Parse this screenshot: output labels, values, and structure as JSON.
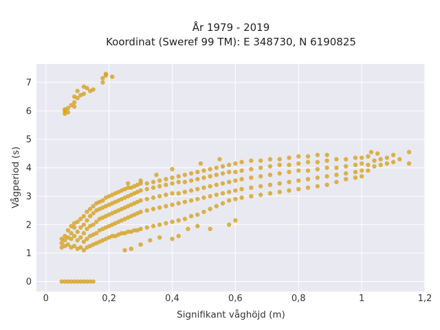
{
  "chart_data": {
    "type": "scatter",
    "title_lines": [
      "År 1979 - 2019",
      "Koordinat (Sweref 99 TM): E 348730, N 6190825"
    ],
    "xlabel": "Signifikant våghöjd (m)",
    "ylabel": "Vågperiod (s)",
    "xlim": [
      -0.03,
      1.2
    ],
    "ylim": [
      -0.35,
      7.65
    ],
    "x_ticks": [
      0,
      0.2,
      0.4,
      0.6,
      0.8,
      1.0,
      1.2
    ],
    "x_tick_labels": [
      "0",
      "0,2",
      "0,4",
      "0,6",
      "0,8",
      "1",
      "1,2"
    ],
    "y_ticks": [
      0,
      1,
      2,
      3,
      4,
      5,
      6,
      7
    ],
    "y_tick_labels": [
      "0",
      "1",
      "2",
      "3",
      "4",
      "5",
      "6",
      "7"
    ],
    "grid": true,
    "marker_color": "#D4A21F",
    "plot_background": "#E9E9F1",
    "points": [
      [
        0.05,
        0
      ],
      [
        0.06,
        0
      ],
      [
        0.07,
        0
      ],
      [
        0.08,
        0
      ],
      [
        0.09,
        0
      ],
      [
        0.1,
        0
      ],
      [
        0.11,
        0
      ],
      [
        0.12,
        0
      ],
      [
        0.13,
        0
      ],
      [
        0.14,
        0
      ],
      [
        0.15,
        0
      ],
      [
        0.05,
        1.2
      ],
      [
        0.05,
        1.35
      ],
      [
        0.05,
        1.5
      ],
      [
        0.06,
        1.25
      ],
      [
        0.06,
        1.45
      ],
      [
        0.06,
        1.6
      ],
      [
        0.07,
        1.3
      ],
      [
        0.07,
        1.55
      ],
      [
        0.07,
        1.8
      ],
      [
        0.08,
        1.2
      ],
      [
        0.08,
        1.5
      ],
      [
        0.08,
        1.7
      ],
      [
        0.08,
        1.95
      ],
      [
        0.09,
        1.25
      ],
      [
        0.09,
        1.6
      ],
      [
        0.09,
        1.9
      ],
      [
        0.09,
        2.05
      ],
      [
        0.1,
        1.15
      ],
      [
        0.1,
        1.45
      ],
      [
        0.1,
        1.75
      ],
      [
        0.1,
        2.1
      ],
      [
        0.11,
        1.2
      ],
      [
        0.11,
        1.55
      ],
      [
        0.11,
        1.9
      ],
      [
        0.11,
        2.2
      ],
      [
        0.12,
        1.1
      ],
      [
        0.12,
        1.4
      ],
      [
        0.12,
        1.7
      ],
      [
        0.12,
        2.0
      ],
      [
        0.12,
        2.3
      ],
      [
        0.13,
        1.2
      ],
      [
        0.13,
        1.5
      ],
      [
        0.13,
        1.85
      ],
      [
        0.13,
        2.15
      ],
      [
        0.13,
        2.45
      ],
      [
        0.14,
        1.25
      ],
      [
        0.14,
        1.6
      ],
      [
        0.14,
        1.95
      ],
      [
        0.14,
        2.3
      ],
      [
        0.14,
        2.55
      ],
      [
        0.15,
        1.3
      ],
      [
        0.15,
        1.65
      ],
      [
        0.15,
        2.0
      ],
      [
        0.15,
        2.4
      ],
      [
        0.15,
        2.65
      ],
      [
        0.16,
        1.35
      ],
      [
        0.16,
        1.7
      ],
      [
        0.16,
        2.1
      ],
      [
        0.16,
        2.5
      ],
      [
        0.16,
        2.75
      ],
      [
        0.17,
        1.4
      ],
      [
        0.17,
        1.8
      ],
      [
        0.17,
        2.2
      ],
      [
        0.17,
        2.55
      ],
      [
        0.17,
        2.8
      ],
      [
        0.18,
        1.45
      ],
      [
        0.18,
        1.85
      ],
      [
        0.18,
        2.25
      ],
      [
        0.18,
        2.6
      ],
      [
        0.18,
        2.85
      ],
      [
        0.19,
        1.5
      ],
      [
        0.19,
        1.9
      ],
      [
        0.19,
        2.3
      ],
      [
        0.19,
        2.65
      ],
      [
        0.19,
        2.95
      ],
      [
        0.2,
        1.55
      ],
      [
        0.2,
        1.95
      ],
      [
        0.2,
        2.35
      ],
      [
        0.2,
        2.7
      ],
      [
        0.2,
        3.0
      ],
      [
        0.21,
        1.6
      ],
      [
        0.21,
        2.0
      ],
      [
        0.21,
        2.4
      ],
      [
        0.21,
        2.75
      ],
      [
        0.21,
        3.05
      ],
      [
        0.22,
        1.6
      ],
      [
        0.22,
        2.05
      ],
      [
        0.22,
        2.45
      ],
      [
        0.22,
        2.8
      ],
      [
        0.22,
        3.1
      ],
      [
        0.23,
        1.65
      ],
      [
        0.23,
        2.1
      ],
      [
        0.23,
        2.5
      ],
      [
        0.23,
        2.85
      ],
      [
        0.23,
        3.15
      ],
      [
        0.24,
        1.7
      ],
      [
        0.24,
        2.15
      ],
      [
        0.24,
        2.55
      ],
      [
        0.24,
        2.9
      ],
      [
        0.24,
        3.2
      ],
      [
        0.25,
        1.7
      ],
      [
        0.25,
        2.2
      ],
      [
        0.25,
        2.6
      ],
      [
        0.25,
        2.95
      ],
      [
        0.25,
        3.25
      ],
      [
        0.26,
        1.75
      ],
      [
        0.26,
        2.25
      ],
      [
        0.26,
        2.65
      ],
      [
        0.26,
        3.0
      ],
      [
        0.26,
        3.3
      ],
      [
        0.27,
        1.75
      ],
      [
        0.27,
        2.3
      ],
      [
        0.27,
        2.7
      ],
      [
        0.27,
        3.05
      ],
      [
        0.27,
        3.3
      ],
      [
        0.28,
        1.8
      ],
      [
        0.28,
        2.35
      ],
      [
        0.28,
        2.75
      ],
      [
        0.28,
        3.1
      ],
      [
        0.28,
        3.35
      ],
      [
        0.29,
        1.8
      ],
      [
        0.29,
        2.4
      ],
      [
        0.29,
        2.8
      ],
      [
        0.29,
        3.15
      ],
      [
        0.29,
        3.4
      ],
      [
        0.3,
        1.85
      ],
      [
        0.3,
        2.45
      ],
      [
        0.3,
        2.85
      ],
      [
        0.3,
        3.2
      ],
      [
        0.3,
        3.45
      ],
      [
        0.32,
        1.9
      ],
      [
        0.32,
        2.5
      ],
      [
        0.32,
        2.9
      ],
      [
        0.32,
        3.25
      ],
      [
        0.32,
        3.45
      ],
      [
        0.34,
        1.95
      ],
      [
        0.34,
        2.55
      ],
      [
        0.34,
        2.95
      ],
      [
        0.34,
        3.3
      ],
      [
        0.34,
        3.5
      ],
      [
        0.36,
        2.0
      ],
      [
        0.36,
        2.6
      ],
      [
        0.36,
        3.0
      ],
      [
        0.36,
        3.35
      ],
      [
        0.36,
        3.55
      ],
      [
        0.38,
        2.05
      ],
      [
        0.38,
        2.65
      ],
      [
        0.38,
        3.05
      ],
      [
        0.38,
        3.4
      ],
      [
        0.38,
        3.6
      ],
      [
        0.4,
        2.1
      ],
      [
        0.4,
        2.7
      ],
      [
        0.4,
        3.1
      ],
      [
        0.4,
        3.45
      ],
      [
        0.4,
        3.65
      ],
      [
        0.42,
        2.15
      ],
      [
        0.42,
        2.75
      ],
      [
        0.42,
        3.1
      ],
      [
        0.42,
        3.5
      ],
      [
        0.42,
        3.7
      ],
      [
        0.44,
        2.2
      ],
      [
        0.44,
        2.8
      ],
      [
        0.44,
        3.15
      ],
      [
        0.44,
        3.5
      ],
      [
        0.44,
        3.75
      ],
      [
        0.46,
        2.3
      ],
      [
        0.46,
        2.85
      ],
      [
        0.46,
        3.2
      ],
      [
        0.46,
        3.55
      ],
      [
        0.46,
        3.8
      ],
      [
        0.48,
        2.35
      ],
      [
        0.48,
        2.9
      ],
      [
        0.48,
        3.25
      ],
      [
        0.48,
        3.6
      ],
      [
        0.48,
        3.85
      ],
      [
        0.5,
        2.45
      ],
      [
        0.5,
        2.95
      ],
      [
        0.5,
        3.3
      ],
      [
        0.5,
        3.65
      ],
      [
        0.5,
        3.9
      ],
      [
        0.52,
        2.55
      ],
      [
        0.52,
        3.0
      ],
      [
        0.52,
        3.35
      ],
      [
        0.52,
        3.7
      ],
      [
        0.52,
        3.95
      ],
      [
        0.54,
        2.65
      ],
      [
        0.54,
        3.05
      ],
      [
        0.54,
        3.4
      ],
      [
        0.54,
        3.75
      ],
      [
        0.54,
        4.0
      ],
      [
        0.56,
        2.75
      ],
      [
        0.56,
        3.1
      ],
      [
        0.56,
        3.45
      ],
      [
        0.56,
        3.8
      ],
      [
        0.56,
        4.05
      ],
      [
        0.58,
        2.85
      ],
      [
        0.58,
        3.15
      ],
      [
        0.58,
        3.5
      ],
      [
        0.58,
        3.85
      ],
      [
        0.58,
        4.1
      ],
      [
        0.6,
        2.9
      ],
      [
        0.6,
        3.2
      ],
      [
        0.6,
        3.55
      ],
      [
        0.6,
        3.85
      ],
      [
        0.6,
        4.15
      ],
      [
        0.62,
        2.95
      ],
      [
        0.62,
        3.25
      ],
      [
        0.62,
        3.6
      ],
      [
        0.62,
        3.9
      ],
      [
        0.62,
        4.2
      ],
      [
        0.65,
        3.0
      ],
      [
        0.65,
        3.3
      ],
      [
        0.65,
        3.65
      ],
      [
        0.65,
        3.95
      ],
      [
        0.65,
        4.25
      ],
      [
        0.68,
        3.05
      ],
      [
        0.68,
        3.35
      ],
      [
        0.68,
        3.7
      ],
      [
        0.68,
        4.0
      ],
      [
        0.68,
        4.25
      ],
      [
        0.71,
        3.1
      ],
      [
        0.71,
        3.4
      ],
      [
        0.71,
        3.75
      ],
      [
        0.71,
        4.05
      ],
      [
        0.71,
        4.3
      ],
      [
        0.74,
        3.15
      ],
      [
        0.74,
        3.45
      ],
      [
        0.74,
        3.8
      ],
      [
        0.74,
        4.1
      ],
      [
        0.74,
        4.3
      ],
      [
        0.77,
        3.2
      ],
      [
        0.77,
        3.5
      ],
      [
        0.77,
        3.85
      ],
      [
        0.77,
        4.1
      ],
      [
        0.77,
        4.35
      ],
      [
        0.8,
        3.25
      ],
      [
        0.8,
        3.55
      ],
      [
        0.8,
        3.9
      ],
      [
        0.8,
        4.15
      ],
      [
        0.8,
        4.4
      ],
      [
        0.83,
        3.3
      ],
      [
        0.83,
        3.6
      ],
      [
        0.83,
        3.9
      ],
      [
        0.83,
        4.2
      ],
      [
        0.83,
        4.4
      ],
      [
        0.86,
        3.35
      ],
      [
        0.86,
        3.65
      ],
      [
        0.86,
        3.95
      ],
      [
        0.86,
        4.2
      ],
      [
        0.86,
        4.45
      ],
      [
        0.89,
        3.4
      ],
      [
        0.89,
        3.7
      ],
      [
        0.89,
        4.0
      ],
      [
        0.89,
        4.25
      ],
      [
        0.89,
        4.45
      ],
      [
        0.92,
        3.5
      ],
      [
        0.92,
        3.75
      ],
      [
        0.92,
        4.0
      ],
      [
        0.92,
        4.3
      ],
      [
        0.95,
        3.6
      ],
      [
        0.95,
        3.8
      ],
      [
        0.95,
        4.05
      ],
      [
        0.95,
        4.3
      ],
      [
        0.98,
        3.65
      ],
      [
        0.98,
        3.85
      ],
      [
        0.98,
        4.1
      ],
      [
        0.98,
        4.35
      ],
      [
        1.0,
        3.7
      ],
      [
        1.0,
        3.9
      ],
      [
        1.0,
        4.15
      ],
      [
        1.0,
        4.35
      ],
      [
        1.02,
        3.9
      ],
      [
        1.02,
        4.1
      ],
      [
        1.02,
        4.4
      ],
      [
        1.04,
        4.05
      ],
      [
        1.04,
        4.25
      ],
      [
        1.06,
        4.1
      ],
      [
        1.06,
        4.3
      ],
      [
        1.08,
        4.15
      ],
      [
        1.08,
        4.35
      ],
      [
        1.1,
        4.2
      ],
      [
        1.1,
        4.45
      ],
      [
        1.12,
        4.3
      ],
      [
        1.15,
        4.15
      ],
      [
        1.15,
        4.55
      ],
      [
        1.03,
        4.55
      ],
      [
        1.05,
        4.5
      ],
      [
        0.06,
        5.9
      ],
      [
        0.06,
        6.0
      ],
      [
        0.06,
        6.05
      ],
      [
        0.07,
        5.95
      ],
      [
        0.07,
        6.1
      ],
      [
        0.08,
        6.2
      ],
      [
        0.09,
        6.15
      ],
      [
        0.09,
        6.3
      ],
      [
        0.09,
        6.5
      ],
      [
        0.1,
        6.45
      ],
      [
        0.1,
        6.7
      ],
      [
        0.11,
        6.55
      ],
      [
        0.12,
        6.6
      ],
      [
        0.12,
        6.85
      ],
      [
        0.13,
        6.8
      ],
      [
        0.14,
        6.7
      ],
      [
        0.15,
        6.75
      ],
      [
        0.18,
        7.15
      ],
      [
        0.18,
        7.0
      ],
      [
        0.19,
        7.25
      ],
      [
        0.19,
        7.3
      ],
      [
        0.21,
        7.2
      ],
      [
        0.25,
        1.1
      ],
      [
        0.27,
        1.15
      ],
      [
        0.3,
        1.3
      ],
      [
        0.33,
        1.45
      ],
      [
        0.36,
        1.55
      ],
      [
        0.4,
        1.5
      ],
      [
        0.42,
        1.6
      ],
      [
        0.45,
        1.85
      ],
      [
        0.48,
        1.95
      ],
      [
        0.52,
        1.85
      ],
      [
        0.58,
        2.0
      ],
      [
        0.6,
        2.15
      ],
      [
        0.55,
        4.3
      ],
      [
        0.49,
        4.15
      ],
      [
        0.4,
        3.95
      ],
      [
        0.35,
        3.75
      ],
      [
        0.3,
        3.55
      ],
      [
        0.26,
        3.45
      ]
    ]
  }
}
